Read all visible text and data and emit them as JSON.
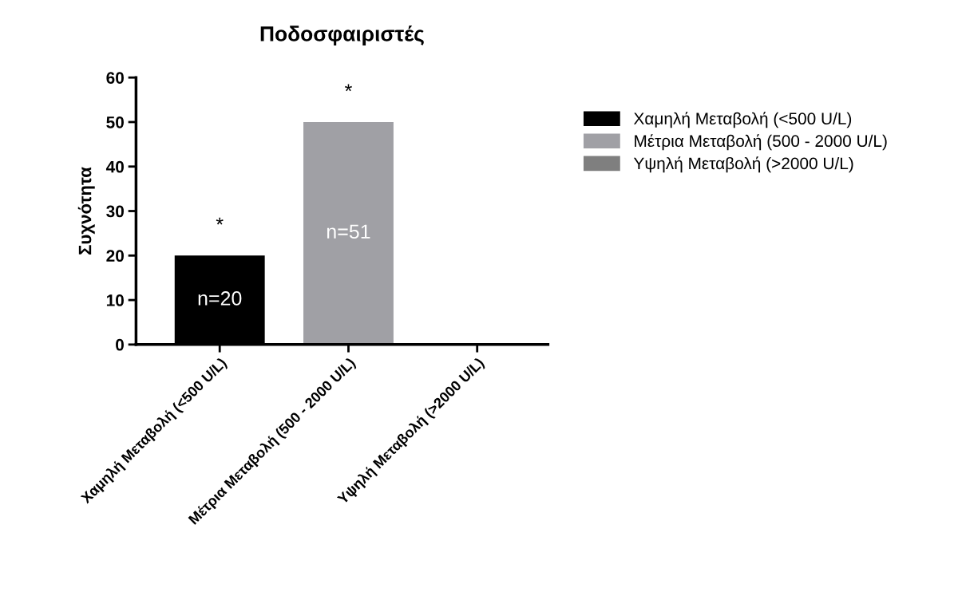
{
  "chart_data": {
    "type": "bar",
    "title": "Ποδοσφαιριστές",
    "ylabel": "Συχνότητα",
    "categories": [
      "Χαμηλή Μεταβολή (<500 U/L)",
      "Μέτρια Μεταβολή (500 - 2000 U/L)",
      "Υψηλή Μεταβολή (>2000 U/L)"
    ],
    "series": [
      {
        "name": "Χαμηλή Μεταβολή (<500 U/L)",
        "color": "#000000",
        "values": [
          20,
          null,
          null
        ]
      },
      {
        "name": "Μέτρια Μεταβολή (500 - 2000 U/L)",
        "color": "#a0a0a5",
        "values": [
          null,
          50,
          null
        ]
      },
      {
        "name": "Υψηλή Μεταβολή (>2000 U/L)",
        "color": "#7f7f7f",
        "values": [
          null,
          null,
          0
        ]
      }
    ],
    "ylim": [
      0,
      60
    ],
    "yticks": [
      0,
      10,
      20,
      30,
      40,
      50,
      60
    ],
    "legend": "right",
    "annotations": [
      "n=20",
      "*",
      "n=51",
      "*"
    ]
  }
}
